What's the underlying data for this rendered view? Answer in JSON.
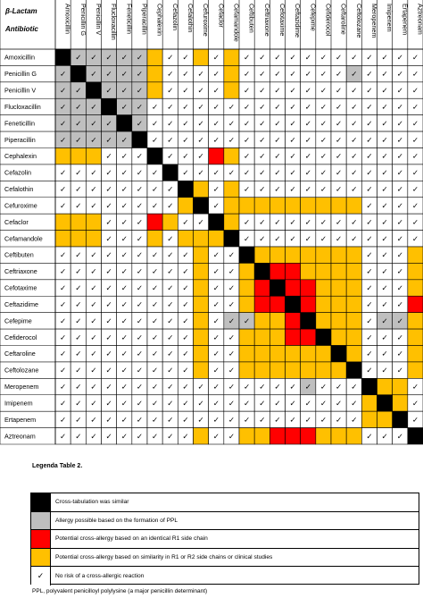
{
  "header": {
    "title_line1": "β-Lactam",
    "title_line2": "Antibiotic"
  },
  "antibiotics": [
    "Amoxicillin",
    "Penicillin G",
    "Penicillin V",
    "Flucloxacillin",
    "Feneticillin",
    "Piperacillin",
    "Cephalexin",
    "Cefazolin",
    "Cefalothin",
    "Cefuroxime",
    "Cefaclor",
    "Cefamandole",
    "Ceftibuten",
    "Ceftriaxone",
    "Cefotaxime",
    "Ceftazidime",
    "Cefepime",
    "Cefiderocol",
    "Ceftaroline",
    "Ceftolozane",
    "Meropenem",
    "Imipenem",
    "Ertapenem",
    "Aztreonam"
  ],
  "colors": {
    "black": "#000000",
    "gray": "#bfbfbf",
    "red": "#ff0000",
    "orange": "#ffc000",
    "white": "#ffffff"
  },
  "matrix_codes": {
    "K": "Cross-tabulation was similar",
    "G": "Allergy possible based on the formation of PPL",
    "R": "Potential cross-allergy based on an identical R1 side chain",
    "O": "Potential cross-allergy based on similarity in R1 or R2 side chains or clinical studies",
    "C": "No risk of a cross-allergic reaction"
  },
  "matrix": [
    "KGGGGGOCCOCOCCCCCCCCCCCC",
    "GKGGGGOCCCCOCCCCCCCGCCCC",
    "GGKGGGOCCCCOCCCCCCCCCCCC",
    "GGGKGGCCCCCCCCCCCCCCCCCC",
    "GGGGKGCCCCCCCCCCCCCCCCCC",
    "GGGGGKCCCCCCCCCCCCCCCCCC",
    "OOOCCCKCCCROCCCCCCCCCCCC",
    "CCCCCCCKCCCCCCCCCCCCCCCC",
    "CCCCCCCCKOCOCCCCCCCCCCCC",
    "CCCCCCCCOKCOOOOOOOOOCCCC",
    "OOOCCCROCCKOCCCCCCCCCCCC",
    "OOOCCCOCOOOKCCCCCCCCCCCC",
    "CCCCCCCCCOCCKOOOOOOOCCCO",
    "CCCCCCCCCOCCOKRROOOOCCCO",
    "CCCCCCCCCOCCORKRROOOCCCO",
    "CCCCCCCCCOCCORRKROOOCCCR",
    "CCCCCCCCCOCGGOORKOOOCGGO",
    "CCCCCCCCCOCCOOORRKOOCCCO",
    "CCCCCCCCCOCCOOOOOOKOCCCO",
    "CCCCCCCCCOCCOOOOOOOKCCCO",
    "CCCCCCCCCCCCCCCCGCCCKOOC",
    "CCCCCCCCCCCCCCCCCCCCOKOC",
    "CCCCCCCCCCCCCCCCCCCCOOKC",
    "CCCCCCCCCOCCOORRROOOCCCK"
  ],
  "legend": {
    "title": "Legenda Table 2.",
    "items": [
      {
        "code": "K",
        "text": "Cross-tabulation was similar"
      },
      {
        "code": "G",
        "text": "Allergy possible based on the formation of PPL"
      },
      {
        "code": "R",
        "text": "Potential cross-allergy based on an identical R1 side chain"
      },
      {
        "code": "O",
        "text": "Potential cross-allergy based on similarity in R1 or R2 side chains or clinical studies"
      },
      {
        "code": "C",
        "text": "No risk of a cross-allergic reaction"
      }
    ]
  },
  "check_mark": "✓",
  "footnote": "PPL, polyvalent penicilloyl polylysine (a major penicillin determinant)"
}
